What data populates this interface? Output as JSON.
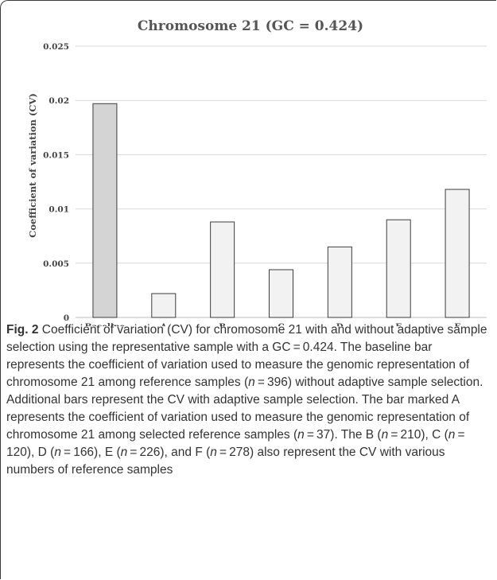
{
  "chart_data": {
    "type": "bar",
    "title": "Chromosome  21 (GC = 0.424)",
    "ylabel": "Coefficient of variation (CV)",
    "xlabel": "",
    "categories": [
      "Baseline",
      "A",
      "B",
      "C",
      "D",
      "E",
      "F"
    ],
    "values": [
      0.0197,
      0.0022,
      0.0088,
      0.0044,
      0.0065,
      0.009,
      0.0118
    ],
    "ylim": [
      0,
      0.025
    ],
    "yticks": [
      "0",
      "0.005",
      "0.01",
      "0.015",
      "0.02",
      "0.025"
    ],
    "grid": true,
    "colors": {
      "baseline_bar": "#d4d4d4",
      "bar": "#f2f2f2",
      "bar_edge": "#3c3c3c",
      "grid": "#d9d9d9"
    }
  },
  "caption": {
    "label": "Fig. 2",
    "segments": [
      {
        "text": " Coefficient of variation (CV) for chromosome 21 with and without adaptive sample selection using the representative sample with a GC = 0.424. The baseline bar represents the coefficient of variation used to measure the genomic representation of chromosome 21 among reference samples (",
        "italic": false
      },
      {
        "text": "n",
        "italic": true
      },
      {
        "text": " = 396) without adaptive sample selection. Additional bars represent the CV with adaptive sample selection. The bar marked A represents the coefficient of variation used to measure the genomic representation of chromosome 21 among selected reference samples (",
        "italic": false
      },
      {
        "text": "n",
        "italic": true
      },
      {
        "text": " = 37). The B (",
        "italic": false
      },
      {
        "text": "n",
        "italic": true
      },
      {
        "text": " = 210), C (",
        "italic": false
      },
      {
        "text": "n",
        "italic": true
      },
      {
        "text": " = 120), D (",
        "italic": false
      },
      {
        "text": "n",
        "italic": true
      },
      {
        "text": " = 166), E (",
        "italic": false
      },
      {
        "text": "n",
        "italic": true
      },
      {
        "text": " = 226), and F (",
        "italic": false
      },
      {
        "text": "n",
        "italic": true
      },
      {
        "text": " = 278) also represent the CV with various numbers of reference samples",
        "italic": false
      }
    ]
  }
}
